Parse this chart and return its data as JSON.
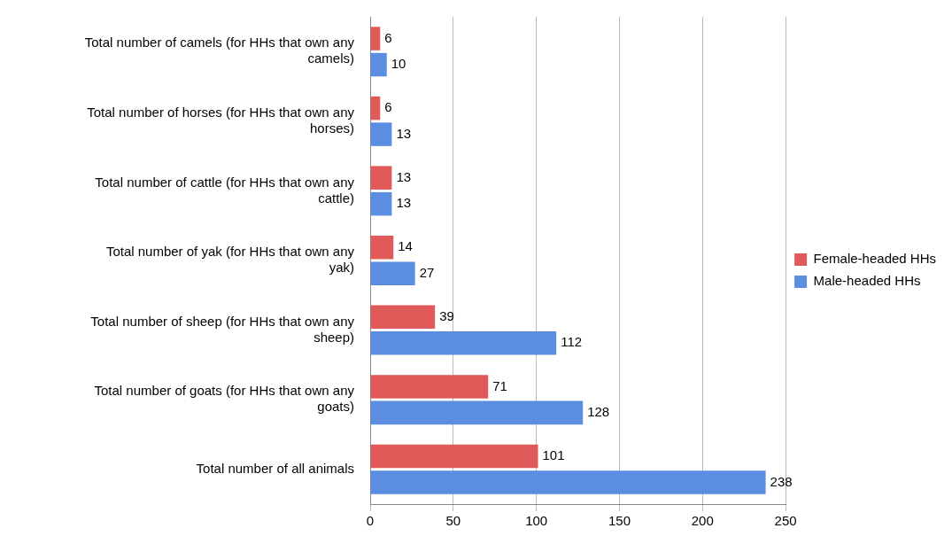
{
  "chart_data": {
    "type": "bar",
    "orientation": "horizontal",
    "categories": [
      "Total number of camels (for HHs that own any camels)",
      "Total number of horses (for HHs that own any horses)",
      "Total number of cattle (for HHs that own any cattle)",
      "Total number of yak (for HHs that own any yak)",
      "Total number of sheep (for HHs that own any sheep)",
      "Total number of goats (for HHs that own any goats)",
      "Total number of all animals"
    ],
    "series": [
      {
        "name": "Female-headed HHs",
        "color": "#e05a5a",
        "values": [
          6,
          6,
          13,
          14,
          39,
          71,
          101
        ]
      },
      {
        "name": "Male-headed HHs",
        "color": "#5b8de0",
        "values": [
          10,
          13,
          13,
          27,
          112,
          128,
          238
        ]
      }
    ],
    "xlim": [
      0,
      250
    ],
    "xticks": [
      0,
      50,
      100,
      150,
      200,
      250
    ],
    "grid": "x",
    "legend": "right",
    "data_labels": true
  }
}
